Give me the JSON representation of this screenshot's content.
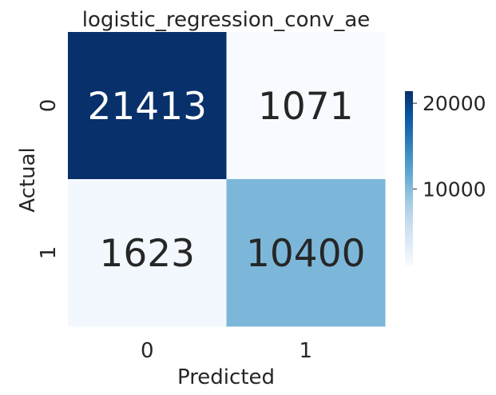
{
  "chart_data": {
    "type": "heatmap",
    "title": "logistic_regression_conv_ae",
    "xlabel": "Predicted",
    "ylabel": "Actual",
    "x_categories": [
      "0",
      "1"
    ],
    "y_categories": [
      "0",
      "1"
    ],
    "values": [
      [
        21413,
        1071
      ],
      [
        1623,
        10400
      ]
    ],
    "cell_labels": [
      [
        "21413",
        "1071"
      ],
      [
        "1623",
        "10400"
      ]
    ],
    "colorscale": "Blues",
    "color_range": [
      1071,
      21413
    ],
    "colorbar_ticks": [
      10000,
      20000
    ],
    "colorbar_tick_labels": [
      "10000",
      "20000"
    ],
    "colors": {
      "low": "#f7fbff",
      "high": "#08306b",
      "text_dark": "#262626",
      "text_light": "#ffffff"
    }
  }
}
